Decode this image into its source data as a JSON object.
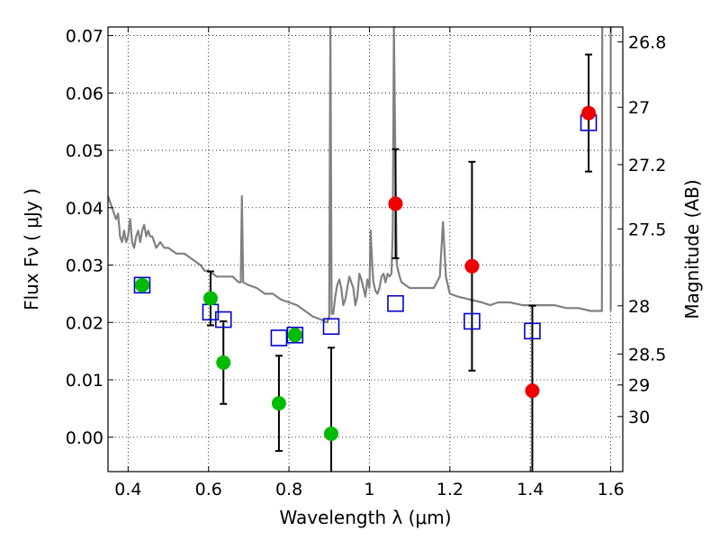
{
  "chart_data": {
    "type": "scatter",
    "xlabel": "Wavelength  λ (μm)",
    "ylabel": "Flux  Fν  ( μJy )",
    "ylabel_right": "Magnitude (AB)",
    "xlim": [
      0.35,
      1.63
    ],
    "ylim": [
      -0.006,
      0.0715
    ],
    "x_ticks": [
      {
        "value": 0.4,
        "label": "0.4"
      },
      {
        "value": 0.6,
        "label": "0.6"
      },
      {
        "value": 0.8,
        "label": "0.8"
      },
      {
        "value": 1.0,
        "label": "1"
      },
      {
        "value": 1.2,
        "label": "1.2"
      },
      {
        "value": 1.4,
        "label": "1.4"
      },
      {
        "value": 1.6,
        "label": "1.6"
      }
    ],
    "y_ticks": [
      {
        "value": 0.0,
        "label": "0.00"
      },
      {
        "value": 0.01,
        "label": "0.01"
      },
      {
        "value": 0.02,
        "label": "0.02"
      },
      {
        "value": 0.03,
        "label": "0.03"
      },
      {
        "value": 0.04,
        "label": "0.04"
      },
      {
        "value": 0.05,
        "label": "0.05"
      },
      {
        "value": 0.06,
        "label": "0.06"
      },
      {
        "value": 0.07,
        "label": "0.07"
      }
    ],
    "mag_ticks": [
      {
        "flux": 0.0689,
        "label": "26.8"
      },
      {
        "flux": 0.0575,
        "label": "27"
      },
      {
        "flux": 0.0475,
        "label": "27.2"
      },
      {
        "flux": 0.0363,
        "label": "27.5"
      },
      {
        "flux": 0.0229,
        "label": "28"
      },
      {
        "flux": 0.0145,
        "label": "28.5"
      },
      {
        "flux": 0.0091,
        "label": "29"
      },
      {
        "flux": 0.0036,
        "label": "30"
      }
    ],
    "grid": true,
    "series": [
      {
        "kind": "model_spectrum",
        "color": "#808080",
        "points": [
          [
            0.35,
            0.042
          ],
          [
            0.36,
            0.04
          ],
          [
            0.37,
            0.038
          ],
          [
            0.375,
            0.039
          ],
          [
            0.38,
            0.035
          ],
          [
            0.385,
            0.034
          ],
          [
            0.39,
            0.036
          ],
          [
            0.395,
            0.034
          ],
          [
            0.4,
            0.035
          ],
          [
            0.405,
            0.038
          ],
          [
            0.41,
            0.034
          ],
          [
            0.415,
            0.033
          ],
          [
            0.42,
            0.035
          ],
          [
            0.425,
            0.036
          ],
          [
            0.43,
            0.034
          ],
          [
            0.435,
            0.036
          ],
          [
            0.44,
            0.037
          ],
          [
            0.445,
            0.035
          ],
          [
            0.45,
            0.036
          ],
          [
            0.455,
            0.035
          ],
          [
            0.46,
            0.035
          ],
          [
            0.465,
            0.034
          ],
          [
            0.47,
            0.033
          ],
          [
            0.48,
            0.034
          ],
          [
            0.49,
            0.033
          ],
          [
            0.5,
            0.033
          ],
          [
            0.52,
            0.032
          ],
          [
            0.54,
            0.032
          ],
          [
            0.56,
            0.031
          ],
          [
            0.58,
            0.03
          ],
          [
            0.59,
            0.029
          ],
          [
            0.6,
            0.029
          ],
          [
            0.62,
            0.028
          ],
          [
            0.64,
            0.028
          ],
          [
            0.66,
            0.028
          ],
          [
            0.675,
            0.027
          ],
          [
            0.68,
            0.027
          ],
          [
            0.683,
            0.042
          ],
          [
            0.686,
            0.027
          ],
          [
            0.7,
            0.0265
          ],
          [
            0.72,
            0.026
          ],
          [
            0.74,
            0.025
          ],
          [
            0.76,
            0.025
          ],
          [
            0.78,
            0.024
          ],
          [
            0.8,
            0.0235
          ],
          [
            0.82,
            0.023
          ],
          [
            0.84,
            0.022
          ],
          [
            0.86,
            0.021
          ],
          [
            0.88,
            0.0205
          ],
          [
            0.895,
            0.02
          ],
          [
            0.9,
            0.021
          ],
          [
            0.903,
            0.0715
          ],
          [
            0.906,
            0.0215
          ],
          [
            0.91,
            0.0215
          ],
          [
            0.915,
            0.0245
          ],
          [
            0.92,
            0.0265
          ],
          [
            0.925,
            0.0275
          ],
          [
            0.93,
            0.026
          ],
          [
            0.935,
            0.023
          ],
          [
            0.94,
            0.024
          ],
          [
            0.945,
            0.026
          ],
          [
            0.95,
            0.028
          ],
          [
            0.955,
            0.027
          ],
          [
            0.96,
            0.026
          ],
          [
            0.965,
            0.023
          ],
          [
            0.97,
            0.0245
          ],
          [
            0.975,
            0.0285
          ],
          [
            0.98,
            0.0275
          ],
          [
            0.985,
            0.026
          ],
          [
            0.99,
            0.0245
          ],
          [
            0.995,
            0.0275
          ],
          [
            1.0,
            0.026
          ],
          [
            1.003,
            0.036
          ],
          [
            1.007,
            0.03
          ],
          [
            1.01,
            0.027
          ],
          [
            1.015,
            0.0255
          ],
          [
            1.02,
            0.025
          ],
          [
            1.025,
            0.026
          ],
          [
            1.03,
            0.028
          ],
          [
            1.035,
            0.0285
          ],
          [
            1.04,
            0.027
          ],
          [
            1.045,
            0.0285
          ],
          [
            1.05,
            0.028
          ],
          [
            1.055,
            0.0285
          ],
          [
            1.058,
            0.036
          ],
          [
            1.061,
            0.0715
          ],
          [
            1.065,
            0.045
          ],
          [
            1.068,
            0.03
          ],
          [
            1.075,
            0.028
          ],
          [
            1.08,
            0.027
          ],
          [
            1.1,
            0.026
          ],
          [
            1.12,
            0.026
          ],
          [
            1.14,
            0.026
          ],
          [
            1.16,
            0.026
          ],
          [
            1.175,
            0.028
          ],
          [
            1.183,
            0.0375
          ],
          [
            1.19,
            0.028
          ],
          [
            1.2,
            0.025
          ],
          [
            1.22,
            0.0245
          ],
          [
            1.25,
            0.024
          ],
          [
            1.28,
            0.0235
          ],
          [
            1.3,
            0.023
          ],
          [
            1.32,
            0.0235
          ],
          [
            1.35,
            0.0235
          ],
          [
            1.38,
            0.023
          ],
          [
            1.4,
            0.023
          ],
          [
            1.43,
            0.023
          ],
          [
            1.46,
            0.023
          ],
          [
            1.49,
            0.0225
          ],
          [
            1.52,
            0.0225
          ],
          [
            1.55,
            0.022
          ],
          [
            1.577,
            0.022
          ],
          [
            1.578,
            0.022
          ],
          [
            1.579,
            0.0715
          ]
        ],
        "extra_segments": [
          [
            [
              1.6,
              0.0715
            ],
            [
              1.6,
              0.022
            ]
          ]
        ]
      },
      {
        "kind": "model_photometry",
        "marker": "open-square",
        "color": "#0000cc",
        "points": [
          {
            "x": 0.435,
            "y": 0.0265
          },
          {
            "x": 0.605,
            "y": 0.0218
          },
          {
            "x": 0.637,
            "y": 0.0205
          },
          {
            "x": 0.775,
            "y": 0.0173
          },
          {
            "x": 0.815,
            "y": 0.0178
          },
          {
            "x": 0.905,
            "y": 0.0193
          },
          {
            "x": 1.065,
            "y": 0.0233
          },
          {
            "x": 1.255,
            "y": 0.0202
          },
          {
            "x": 1.405,
            "y": 0.0185
          },
          {
            "x": 1.545,
            "y": 0.0548
          }
        ]
      },
      {
        "kind": "observed_optical",
        "marker": "filled-circle",
        "color": "#00bb00",
        "points": [
          {
            "x": 0.435,
            "y": 0.0265,
            "err": null
          },
          {
            "x": 0.605,
            "y": 0.0242,
            "err": 0.0047
          },
          {
            "x": 0.637,
            "y": 0.013,
            "err": 0.0072
          },
          {
            "x": 0.775,
            "y": 0.0059,
            "err": 0.0083
          },
          {
            "x": 0.815,
            "y": 0.0178,
            "err": null
          },
          {
            "x": 0.905,
            "y": 0.0006,
            "err": 0.015
          }
        ]
      },
      {
        "kind": "observed_nir",
        "marker": "filled-circle",
        "color": "#ee0000",
        "points": [
          {
            "x": 1.065,
            "y": 0.0407,
            "err": 0.0095
          },
          {
            "x": 1.255,
            "y": 0.0298,
            "err": 0.0182
          },
          {
            "x": 1.405,
            "y": 0.0081,
            "err": 0.0148
          },
          {
            "x": 1.545,
            "y": 0.0565,
            "err": 0.0102
          }
        ]
      }
    ]
  }
}
